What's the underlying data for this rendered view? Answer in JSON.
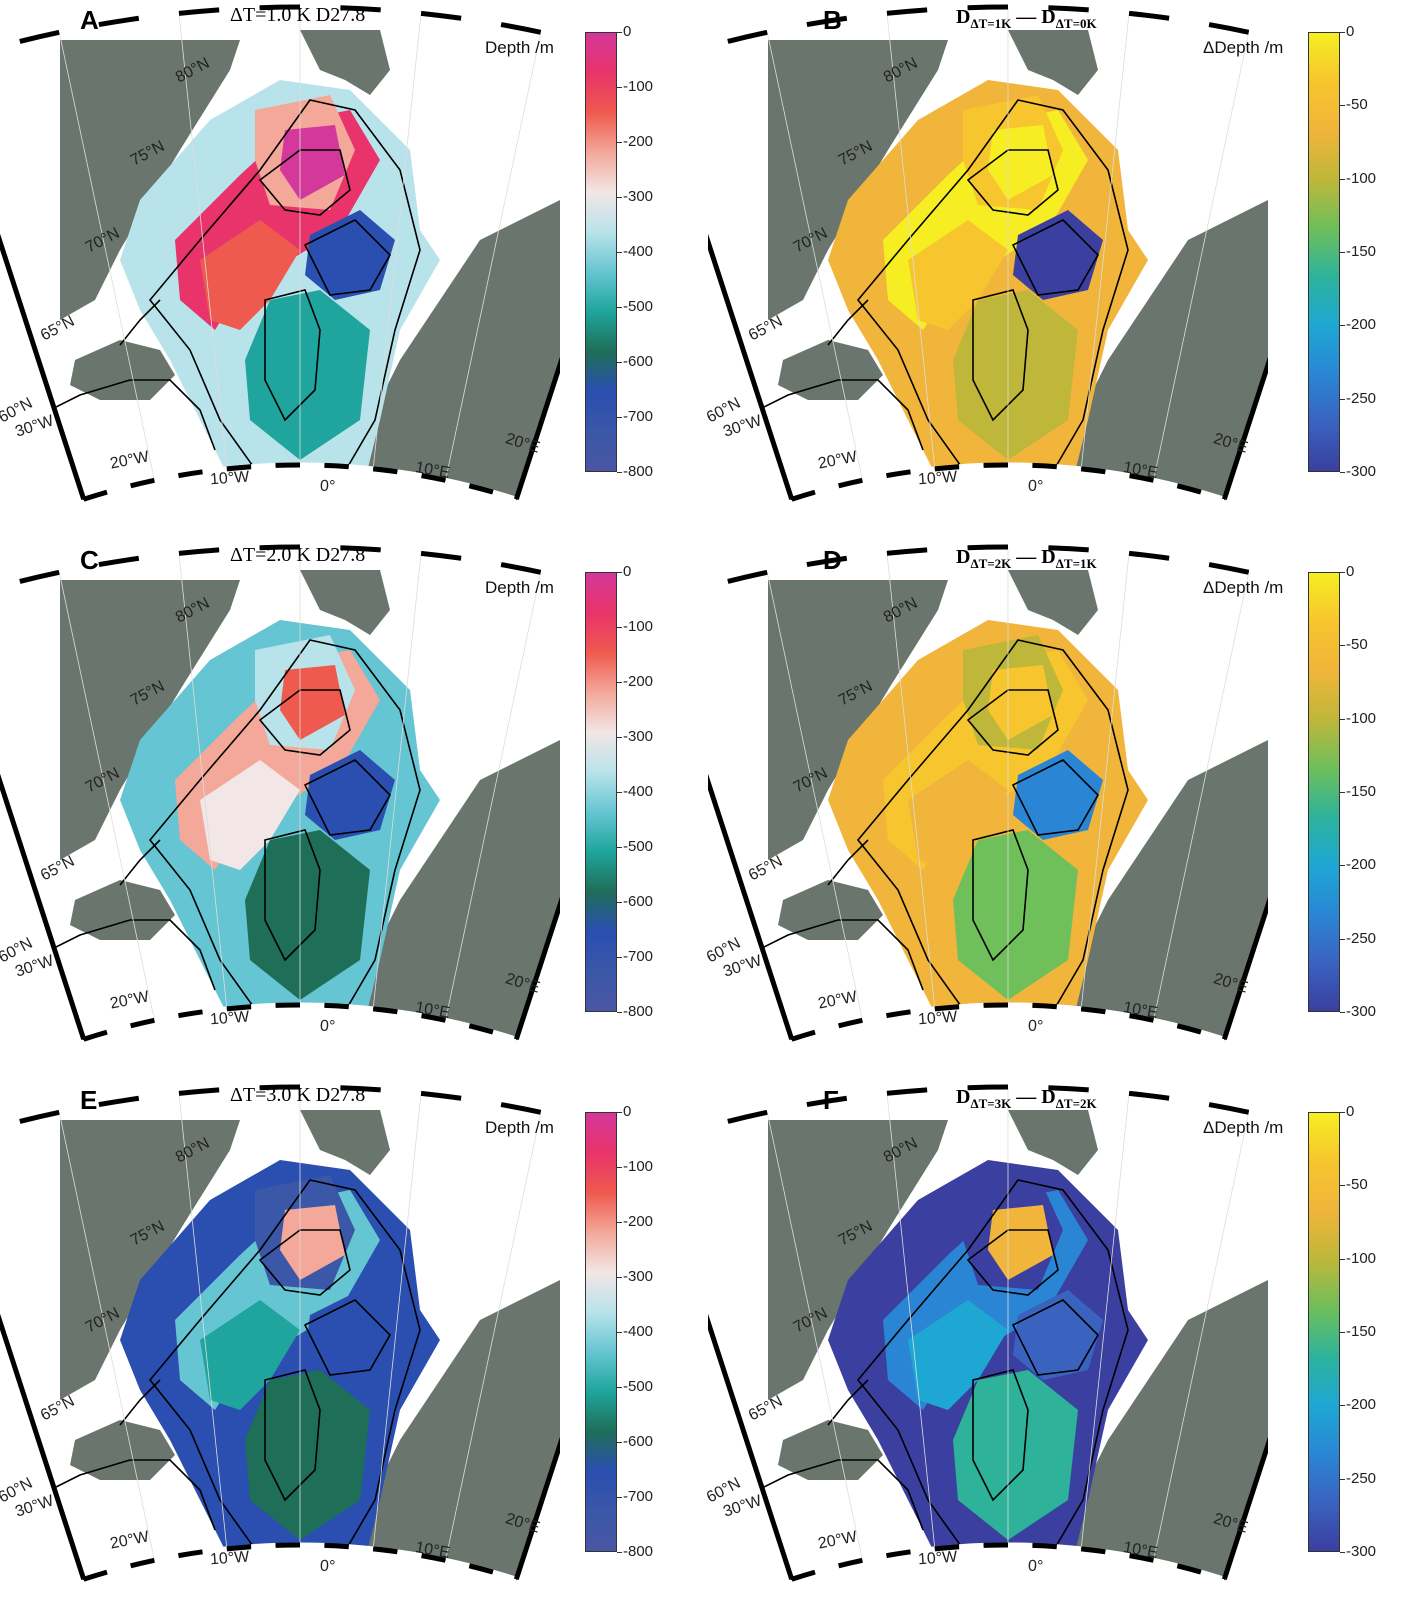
{
  "panels": [
    {
      "id": "A",
      "title_main": "ΔT=1.0 K  D27.8",
      "type": "depth",
      "cbar_title": "Depth /m"
    },
    {
      "id": "B",
      "title_d1": "D",
      "title_s1": "ΔT=1K",
      "title_d2": "D",
      "title_s2": "ΔT=0K",
      "type": "delta",
      "cbar_title": "ΔDepth /m"
    },
    {
      "id": "C",
      "title_main": "ΔT=2.0 K  D27.8",
      "type": "depth",
      "cbar_title": "Depth /m"
    },
    {
      "id": "D",
      "title_d1": "D",
      "title_s1": "ΔT=2K",
      "title_d2": "D",
      "title_s2": "ΔT=1K",
      "type": "delta",
      "cbar_title": "ΔDepth /m"
    },
    {
      "id": "E",
      "title_main": "ΔT=3.0 K  D27.8",
      "type": "depth",
      "cbar_title": "Depth /m"
    },
    {
      "id": "F",
      "title_d1": "D",
      "title_s1": "ΔT=3K",
      "title_d2": "D",
      "title_s2": "ΔT=2K",
      "type": "delta",
      "cbar_title": "ΔDepth /m"
    }
  ],
  "colorbars": {
    "depth": {
      "ticks": [
        "0",
        "-100",
        "-200",
        "-300",
        "-400",
        "-500",
        "-600",
        "-700",
        "-800"
      ],
      "colors": [
        "#d4389a",
        "#e8346a",
        "#ee5a4e",
        "#f3a89a",
        "#f2e6e6",
        "#b9e3ea",
        "#66c5d2",
        "#1fa59d",
        "#1f6e58",
        "#2a4fb0",
        "#3a57a8",
        "#4a56a4"
      ]
    },
    "delta": {
      "ticks": [
        "0",
        "-50",
        "-100",
        "-150",
        "-200",
        "-250",
        "-300"
      ],
      "colors": [
        "#f6ee22",
        "#f7c52e",
        "#f0b53a",
        "#bfb73a",
        "#6fbf5a",
        "#2eb39a",
        "#1ea7d3",
        "#2a86d5",
        "#3a63c0",
        "#3b3f9f"
      ]
    }
  },
  "map_labels": {
    "lat": [
      "80°N",
      "75°N",
      "70°N",
      "65°N",
      "60°N"
    ],
    "lon": [
      "30°W",
      "20°W",
      "10°W",
      "0°",
      "10°E",
      "20°E"
    ]
  },
  "colors": {
    "land": "#6a756d",
    "contour": "#000000"
  }
}
